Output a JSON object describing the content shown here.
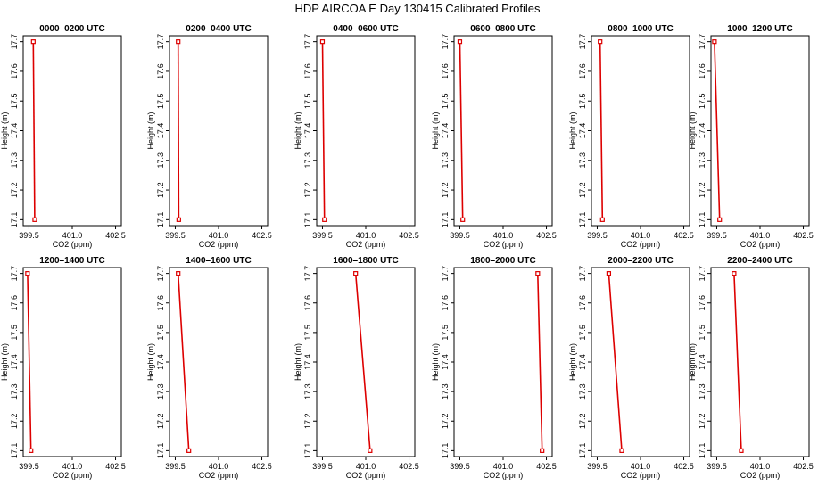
{
  "title": "HDP AIRCOA E  Day 130415  Calibrated Profiles",
  "colors": {
    "line": "#dd0000",
    "axis": "#000000",
    "background": "#ffffff"
  },
  "chart_data": [
    {
      "type": "line",
      "title": "0000–0200 UTC",
      "xlabel": "CO2 (ppm)",
      "ylabel": "Height (m)",
      "xlim": [
        399.3,
        402.7
      ],
      "ylim": [
        17.08,
        17.72
      ],
      "xticks": [
        "399.5",
        "401.0",
        "402.5"
      ],
      "yticks": [
        "17.1",
        "17.2",
        "17.3",
        "17.4",
        "17.5",
        "17.6",
        "17.7"
      ],
      "points": [
        {
          "x": 399.65,
          "y": 17.7
        },
        {
          "x": 399.7,
          "y": 17.1
        }
      ]
    },
    {
      "type": "line",
      "title": "0200–0400 UTC",
      "xlabel": "CO2 (ppm)",
      "ylabel": "Height (m)",
      "xlim": [
        399.3,
        402.7
      ],
      "ylim": [
        17.08,
        17.72
      ],
      "xticks": [
        "399.5",
        "401.0",
        "402.5"
      ],
      "yticks": [
        "17.1",
        "17.2",
        "17.3",
        "17.4",
        "17.5",
        "17.6",
        "17.7"
      ],
      "points": [
        {
          "x": 399.6,
          "y": 17.7
        },
        {
          "x": 399.62,
          "y": 17.1
        }
      ]
    },
    {
      "type": "line",
      "title": "0400–0600 UTC",
      "xlabel": "CO2 (ppm)",
      "ylabel": "Height (m)",
      "xlim": [
        399.3,
        402.7
      ],
      "ylim": [
        17.08,
        17.72
      ],
      "xticks": [
        "399.5",
        "401.0",
        "402.5"
      ],
      "yticks": [
        "17.1",
        "17.2",
        "17.3",
        "17.4",
        "17.5",
        "17.6",
        "17.7"
      ],
      "points": [
        {
          "x": 399.5,
          "y": 17.7
        },
        {
          "x": 399.57,
          "y": 17.1
        }
      ]
    },
    {
      "type": "line",
      "title": "0600–0800 UTC",
      "xlabel": "CO2 (ppm)",
      "ylabel": "Height (m)",
      "xlim": [
        399.3,
        402.7
      ],
      "ylim": [
        17.08,
        17.72
      ],
      "xticks": [
        "399.5",
        "401.0",
        "402.5"
      ],
      "yticks": [
        "17.1",
        "17.2",
        "17.3",
        "17.4",
        "17.5",
        "17.6",
        "17.7"
      ],
      "points": [
        {
          "x": 399.5,
          "y": 17.7
        },
        {
          "x": 399.6,
          "y": 17.1
        }
      ]
    },
    {
      "type": "line",
      "title": "0800–1000 UTC",
      "xlabel": "CO2 (ppm)",
      "ylabel": "Height (m)",
      "xlim": [
        399.3,
        402.7
      ],
      "ylim": [
        17.08,
        17.72
      ],
      "xticks": [
        "399.5",
        "401.0",
        "402.5"
      ],
      "yticks": [
        "17.1",
        "17.2",
        "17.3",
        "17.4",
        "17.5",
        "17.6",
        "17.7"
      ],
      "points": [
        {
          "x": 399.6,
          "y": 17.7
        },
        {
          "x": 399.68,
          "y": 17.1
        }
      ]
    },
    {
      "type": "line",
      "title": "1000–1200 UTC",
      "xlabel": "CO2 (ppm)",
      "ylabel": "Height (m)",
      "xlim": [
        399.3,
        402.7
      ],
      "ylim": [
        17.08,
        17.72
      ],
      "xticks": [
        "399.5",
        "401.0",
        "402.5"
      ],
      "yticks": [
        "17.1",
        "17.2",
        "17.3",
        "17.4",
        "17.5",
        "17.6",
        "17.7"
      ],
      "points": [
        {
          "x": 399.42,
          "y": 17.7
        },
        {
          "x": 399.6,
          "y": 17.1
        }
      ]
    },
    {
      "type": "line",
      "title": "1200–1400 UTC",
      "xlabel": "CO2 (ppm)",
      "ylabel": "Height (m)",
      "xlim": [
        399.3,
        402.7
      ],
      "ylim": [
        17.08,
        17.72
      ],
      "xticks": [
        "399.5",
        "401.0",
        "402.5"
      ],
      "yticks": [
        "17.1",
        "17.2",
        "17.3",
        "17.4",
        "17.5",
        "17.6",
        "17.7"
      ],
      "points": [
        {
          "x": 399.45,
          "y": 17.7
        },
        {
          "x": 399.57,
          "y": 17.1
        }
      ]
    },
    {
      "type": "line",
      "title": "1400–1600 UTC",
      "xlabel": "CO2 (ppm)",
      "ylabel": "Height (m)",
      "xlim": [
        399.3,
        402.7
      ],
      "ylim": [
        17.08,
        17.72
      ],
      "xticks": [
        "399.5",
        "401.0",
        "402.5"
      ],
      "yticks": [
        "17.1",
        "17.2",
        "17.3",
        "17.4",
        "17.5",
        "17.6",
        "17.7"
      ],
      "points": [
        {
          "x": 399.6,
          "y": 17.7
        },
        {
          "x": 399.97,
          "y": 17.1
        }
      ]
    },
    {
      "type": "line",
      "title": "1600–1800 UTC",
      "xlabel": "CO2 (ppm)",
      "ylabel": "Height (m)",
      "xlim": [
        399.3,
        402.7
      ],
      "ylim": [
        17.08,
        17.72
      ],
      "xticks": [
        "399.5",
        "401.0",
        "402.5"
      ],
      "yticks": [
        "17.1",
        "17.2",
        "17.3",
        "17.4",
        "17.5",
        "17.6",
        "17.7"
      ],
      "points": [
        {
          "x": 400.65,
          "y": 17.7
        },
        {
          "x": 401.15,
          "y": 17.1
        }
      ]
    },
    {
      "type": "line",
      "title": "1800–2000 UTC",
      "xlabel": "CO2 (ppm)",
      "ylabel": "Height (m)",
      "xlim": [
        399.3,
        402.7
      ],
      "ylim": [
        17.08,
        17.72
      ],
      "xticks": [
        "399.5",
        "401.0",
        "402.5"
      ],
      "yticks": [
        "17.1",
        "17.2",
        "17.3",
        "17.4",
        "17.5",
        "17.6",
        "17.7"
      ],
      "points": [
        {
          "x": 402.2,
          "y": 17.7
        },
        {
          "x": 402.35,
          "y": 17.1
        }
      ]
    },
    {
      "type": "line",
      "title": "2000–2200 UTC",
      "xlabel": "CO2 (ppm)",
      "ylabel": "Height (m)",
      "xlim": [
        399.3,
        402.7
      ],
      "ylim": [
        17.08,
        17.72
      ],
      "xticks": [
        "399.5",
        "401.0",
        "402.5"
      ],
      "yticks": [
        "17.1",
        "17.2",
        "17.3",
        "17.4",
        "17.5",
        "17.6",
        "17.7"
      ],
      "points": [
        {
          "x": 399.9,
          "y": 17.7
        },
        {
          "x": 400.35,
          "y": 17.1
        }
      ]
    },
    {
      "type": "line",
      "title": "2200–2400 UTC",
      "xlabel": "CO2 (ppm)",
      "ylabel": "Height (m)",
      "xlim": [
        399.3,
        402.7
      ],
      "ylim": [
        17.08,
        17.72
      ],
      "xticks": [
        "399.5",
        "401.0",
        "402.5"
      ],
      "yticks": [
        "17.1",
        "17.2",
        "17.3",
        "17.4",
        "17.5",
        "17.6",
        "17.7"
      ],
      "points": [
        {
          "x": 400.1,
          "y": 17.7
        },
        {
          "x": 400.35,
          "y": 17.1
        }
      ]
    }
  ]
}
